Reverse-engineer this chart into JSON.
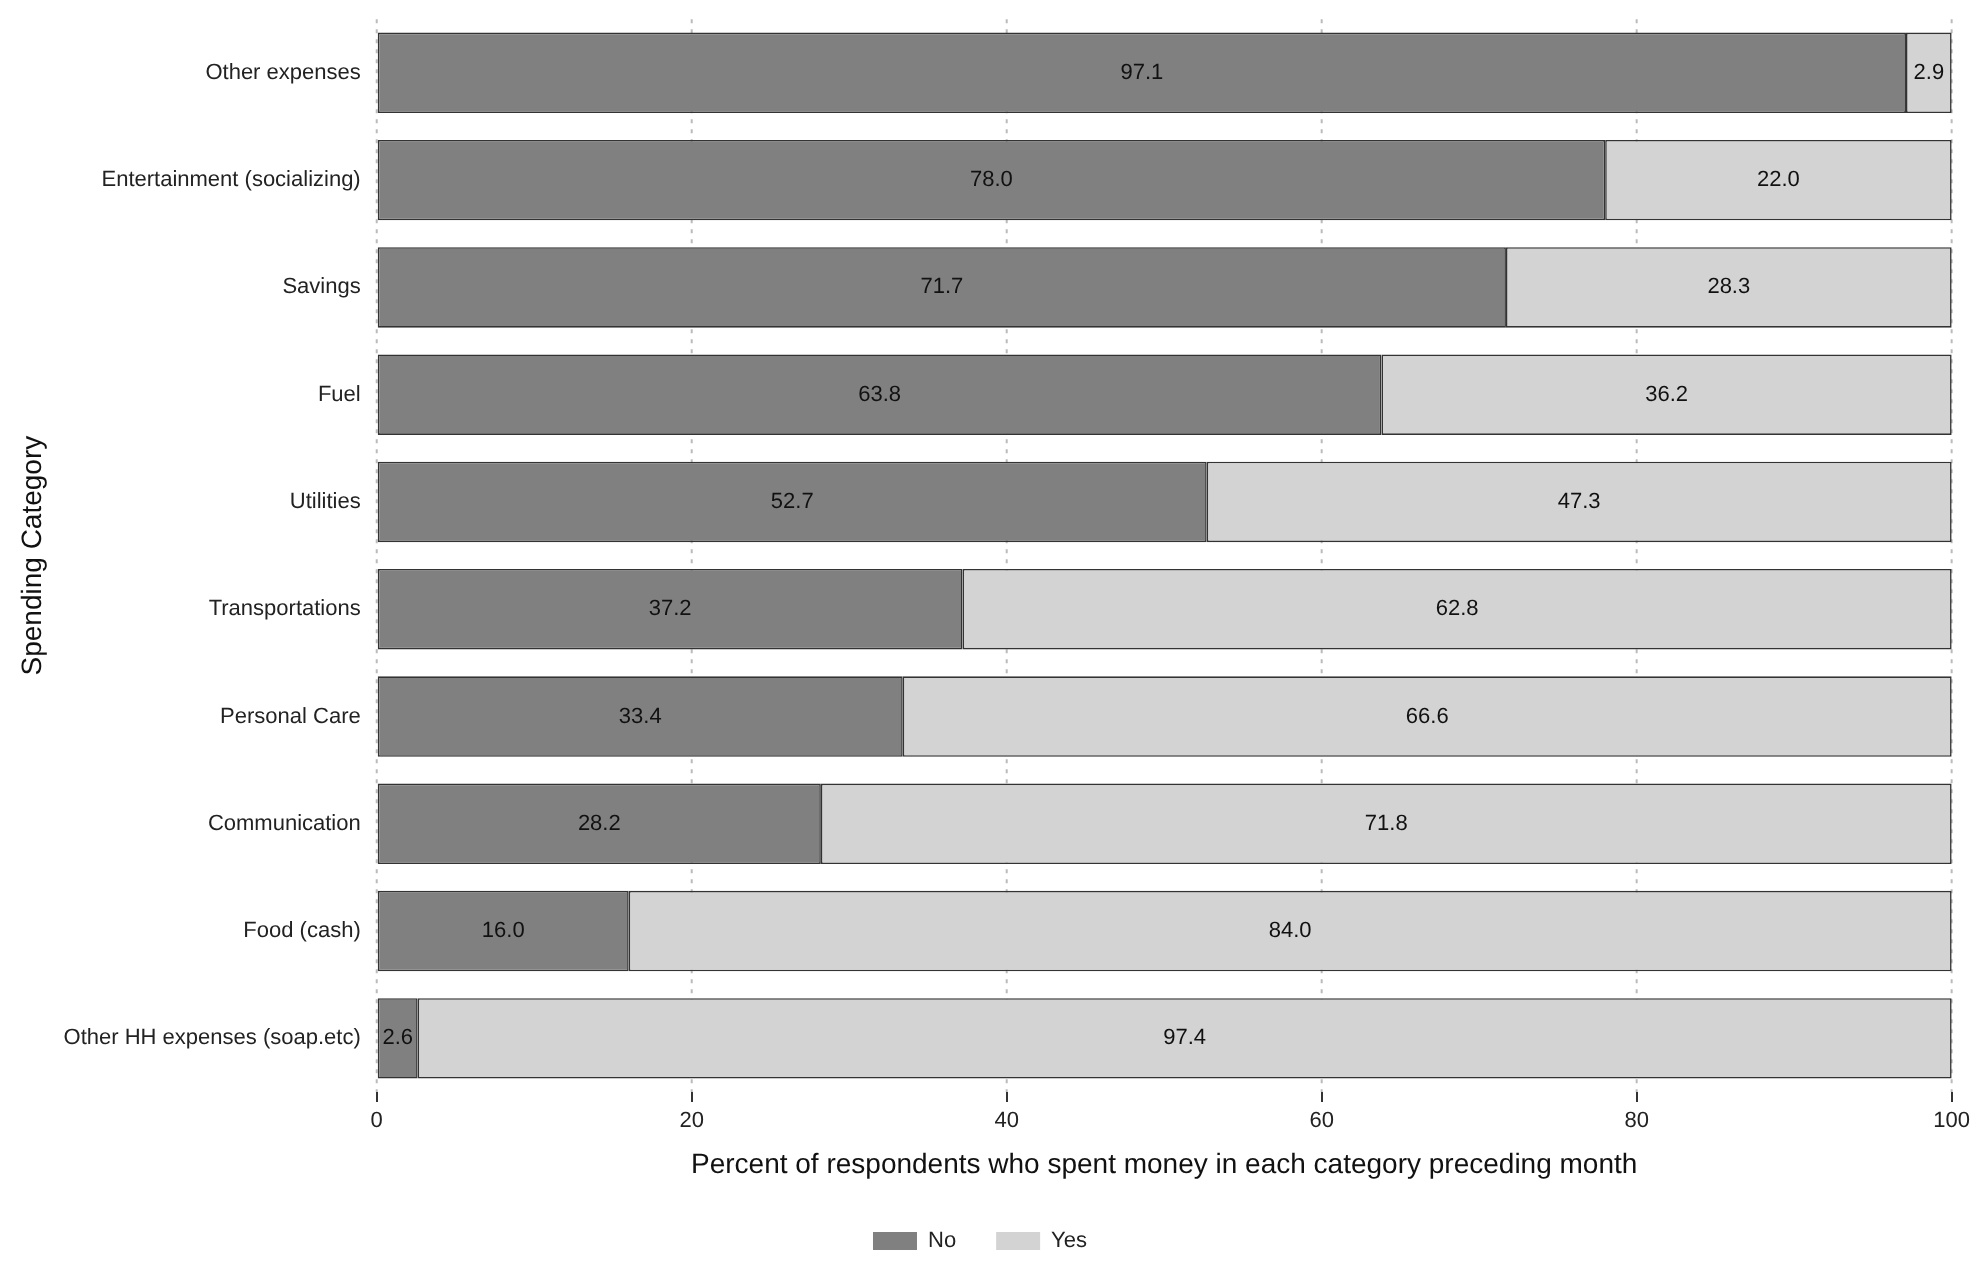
{
  "chart_data": {
    "type": "bar",
    "orientation": "horizontal",
    "stacked": true,
    "categories": [
      "Other expenses",
      "Entertainment (socializing)",
      "Savings",
      "Fuel",
      "Utilities",
      "Transportations",
      "Personal Care",
      "Communication",
      "Food (cash)",
      "Other HH expenses (soap.etc)"
    ],
    "series": [
      {
        "name": "No",
        "color": "#808080",
        "values": [
          97.1,
          78.0,
          71.7,
          63.8,
          52.7,
          37.2,
          33.4,
          28.2,
          16.0,
          2.6
        ]
      },
      {
        "name": "Yes",
        "color": "#d3d3d3",
        "values": [
          2.9,
          22.0,
          28.3,
          36.2,
          47.3,
          62.8,
          66.6,
          71.8,
          84.0,
          97.4
        ]
      }
    ],
    "value_labels": [
      [
        "97.1",
        "78.0",
        "71.7",
        "63.8",
        "52.7",
        "37.2",
        "33.4",
        "28.2",
        "16.0",
        "2.6"
      ],
      [
        "2.9",
        "22.0",
        "28.3",
        "36.2",
        "47.3",
        "62.8",
        "66.6",
        "71.8",
        "84.0",
        "97.4"
      ]
    ],
    "xlabel": "Percent of respondents who spent money in each category preceding month",
    "ylabel": "Spending Category",
    "xlim": [
      0,
      100
    ],
    "xticks": [
      0,
      20,
      40,
      60,
      80,
      100
    ],
    "grid": "x",
    "legend": "bottom"
  }
}
